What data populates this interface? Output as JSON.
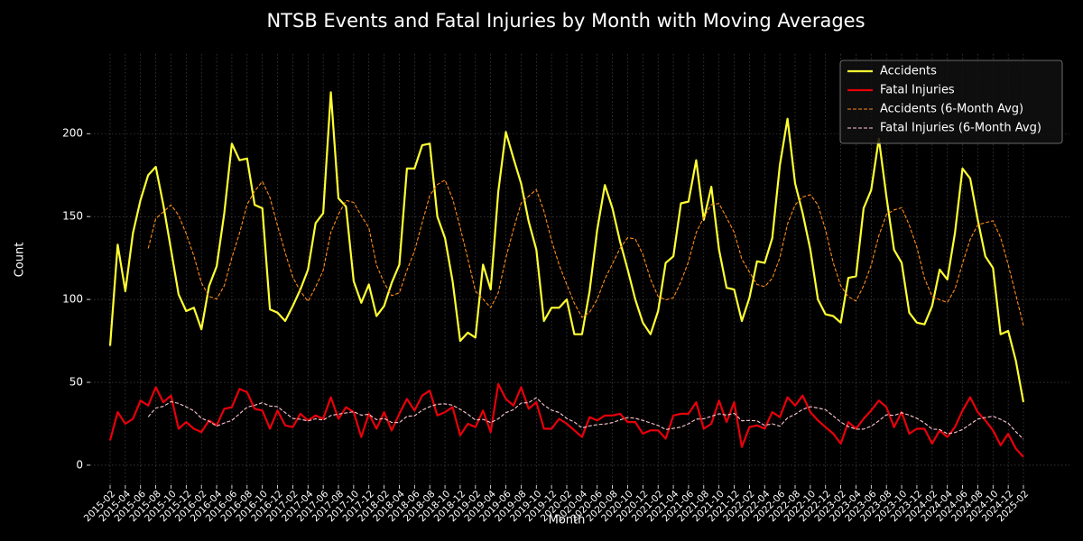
{
  "chart_data": {
    "type": "line",
    "title": "NTSB Events and Fatal Injuries by Month with Moving Averages",
    "x_label": "Month",
    "y_label": "Count",
    "categories": [
      "2015-02",
      null,
      "2015-04",
      null,
      "2015-06",
      null,
      "2015-08",
      null,
      "2015-10",
      null,
      "2015-12",
      null,
      "2016-02",
      null,
      "2016-04",
      null,
      "2016-06",
      null,
      "2016-08",
      null,
      "2016-10",
      null,
      "2016-12",
      null,
      "2017-02",
      null,
      "2017-04",
      null,
      "2017-06",
      null,
      "2017-08",
      null,
      "2017-10",
      null,
      "2017-12",
      null,
      "2018-02",
      null,
      "2018-04",
      null,
      "2018-06",
      null,
      "2018-08",
      null,
      "2018-10",
      null,
      "2018-12",
      null,
      "2019-02",
      null,
      "2019-04",
      null,
      "2019-06",
      null,
      "2019-08",
      null,
      "2019-10",
      null,
      "2019-12",
      null,
      "2020-02",
      null,
      "2020-04",
      null,
      "2020-06",
      null,
      "2020-08",
      null,
      "2020-10",
      null,
      "2020-12",
      null,
      "2021-02",
      null,
      "2021-04",
      null,
      "2021-06",
      null,
      "2021-08",
      null,
      "2021-10",
      null,
      "2021-12",
      null,
      "2022-02",
      null,
      "2022-04",
      null,
      "2022-06",
      null,
      "2022-08",
      null,
      "2022-10",
      null,
      "2022-12",
      null,
      "2023-02",
      null,
      "2023-04",
      null,
      "2023-06",
      null,
      "2023-08",
      null,
      "2023-10",
      null,
      "2023-12",
      null,
      "2024-02",
      null,
      "2024-04",
      null,
      "2024-06",
      null,
      "2024-08",
      null,
      "2024-10",
      null,
      "2024-12",
      null,
      "2025-02"
    ],
    "series": [
      {
        "name": "Accidents",
        "color": "#ffff33",
        "linestyle": "solid",
        "values": [
          72,
          133,
          105,
          140,
          160,
          175,
          180,
          157,
          130,
          103,
          93,
          95,
          82,
          108,
          120,
          152,
          194,
          184,
          185,
          157,
          155,
          94,
          92,
          87,
          96,
          106,
          118,
          146,
          152,
          225,
          161,
          156,
          111,
          98,
          109,
          90,
          96,
          110,
          121,
          179,
          179,
          193,
          194,
          150,
          137,
          111,
          75,
          80,
          77,
          121,
          106,
          165,
          201,
          185,
          170,
          147,
          130,
          87,
          95,
          95,
          100,
          79,
          79,
          105,
          142,
          169,
          155,
          135,
          118,
          100,
          86,
          79,
          93,
          122,
          126,
          158,
          159,
          184,
          148,
          168,
          130,
          107,
          106,
          87,
          101,
          123,
          122,
          137,
          181,
          209,
          170,
          152,
          130,
          100,
          91,
          90,
          86,
          113,
          114,
          155,
          166,
          197,
          162,
          130,
          122,
          92,
          86,
          85,
          96,
          118,
          112,
          140,
          179,
          173,
          148,
          126,
          119,
          79,
          81,
          63,
          38
        ]
      },
      {
        "name": "Fatal Injuries",
        "color": "#e8000b",
        "linestyle": "solid",
        "values": [
          15,
          32,
          25,
          28,
          39,
          36,
          47,
          38,
          42,
          22,
          26,
          22,
          20,
          27,
          24,
          34,
          35,
          46,
          44,
          34,
          33,
          22,
          33,
          24,
          23,
          31,
          27,
          30,
          28,
          41,
          28,
          35,
          32,
          17,
          31,
          22,
          32,
          21,
          31,
          40,
          33,
          42,
          45,
          30,
          32,
          35,
          18,
          25,
          23,
          33,
          20,
          49,
          40,
          36,
          47,
          34,
          38,
          22,
          22,
          28,
          25,
          21,
          17,
          29,
          27,
          30,
          30,
          31,
          26,
          26,
          19,
          21,
          21,
          16,
          30,
          31,
          31,
          38,
          22,
          25,
          39,
          26,
          38,
          11,
          23,
          24,
          22,
          32,
          29,
          41,
          36,
          42,
          32,
          27,
          23,
          19,
          13,
          26,
          22,
          28,
          33,
          39,
          35,
          23,
          32,
          19,
          22,
          22,
          13,
          21,
          17,
          23,
          33,
          41,
          32,
          27,
          21,
          12,
          19,
          10,
          5
        ]
      },
      {
        "name": "Accidents (6-Month Avg)",
        "color": "#ff8c1a",
        "linestyle": "dashed",
        "values": [
          null,
          null,
          null,
          null,
          null,
          130.8,
          148.8,
          152.8,
          157.0,
          150.8,
          139.7,
          126.3,
          110.0,
          101.8,
          100.2,
          108.3,
          125.2,
          140.0,
          157.2,
          165.3,
          171.2,
          161.5,
          144.5,
          128.3,
          113.5,
          105.0,
          98.8,
          107.5,
          117.5,
          140.5,
          151.3,
          159.7,
          158.5,
          150.5,
          143.3,
          120.8,
          110.0,
          102.3,
          104.0,
          117.5,
          129.2,
          146.3,
          162.7,
          169.3,
          172.0,
          160.7,
          143.3,
          124.5,
          105.0,
          100.2,
          95.0,
          104.0,
          125.0,
          142.5,
          158.0,
          162.3,
          166.3,
          153.3,
          135.7,
          120.7,
          109.0,
          97.7,
          89.2,
          92.2,
          100.0,
          112.3,
          121.5,
          130.8,
          137.3,
          136.5,
          127.2,
          112.2,
          101.8,
          99.7,
          101.0,
          110.7,
          122.8,
          140.3,
          149.5,
          157.2,
          157.8,
          149.3,
          140.5,
          124.3,
          116.5,
          109.0,
          107.7,
          112.7,
          125.2,
          145.5,
          157.0,
          161.8,
          163.2,
          157.0,
          142.0,
          122.2,
          108.2,
          101.7,
          99.0,
          108.2,
          120.7,
          138.5,
          151.2,
          154.0,
          155.3,
          144.8,
          131.5,
          112.8,
          101.8,
          99.8,
          98.2,
          106.2,
          121.7,
          136.3,
          145.0,
          146.3,
          147.5,
          137.3,
          121.0,
          102.7,
          84.3
        ]
      },
      {
        "name": "Fatal Injuries (6-Month Avg)",
        "color": "#ffc8d2",
        "linestyle": "dashed",
        "values": [
          null,
          null,
          null,
          null,
          null,
          29.2,
          34.5,
          35.5,
          38.3,
          37.3,
          35.2,
          32.8,
          28.3,
          26.5,
          23.5,
          25.5,
          27.0,
          31.0,
          35.0,
          36.2,
          37.7,
          35.7,
          35.3,
          31.7,
          28.2,
          27.7,
          26.7,
          28.0,
          27.2,
          30.0,
          30.8,
          31.5,
          32.3,
          30.2,
          30.7,
          27.5,
          28.2,
          25.8,
          25.7,
          29.5,
          29.8,
          33.2,
          35.3,
          36.8,
          37.0,
          36.2,
          33.7,
          30.8,
          27.2,
          27.7,
          25.7,
          28.0,
          31.7,
          33.5,
          37.5,
          37.7,
          40.7,
          36.2,
          33.2,
          31.8,
          28.2,
          26.0,
          22.5,
          23.7,
          24.5,
          24.8,
          25.7,
          27.3,
          28.8,
          28.3,
          27.0,
          25.5,
          24.0,
          21.5,
          22.2,
          23.0,
          25.0,
          27.8,
          28.0,
          29.5,
          31.0,
          30.2,
          31.3,
          26.8,
          27.0,
          26.8,
          24.0,
          25.0,
          23.5,
          28.5,
          30.7,
          33.7,
          35.3,
          34.5,
          33.5,
          29.8,
          26.0,
          23.3,
          21.7,
          21.8,
          23.5,
          26.8,
          30.5,
          30.0,
          31.7,
          30.2,
          28.3,
          25.5,
          21.8,
          21.5,
          19.0,
          19.7,
          21.5,
          24.7,
          27.8,
          28.8,
          29.5,
          27.7,
          25.3,
          20.2,
          15.7
        ]
      }
    ],
    "ylim": [
      -12,
      248
    ],
    "yticks": [
      0,
      50,
      100,
      150,
      200
    ],
    "grid": true,
    "legend": "upper right"
  }
}
